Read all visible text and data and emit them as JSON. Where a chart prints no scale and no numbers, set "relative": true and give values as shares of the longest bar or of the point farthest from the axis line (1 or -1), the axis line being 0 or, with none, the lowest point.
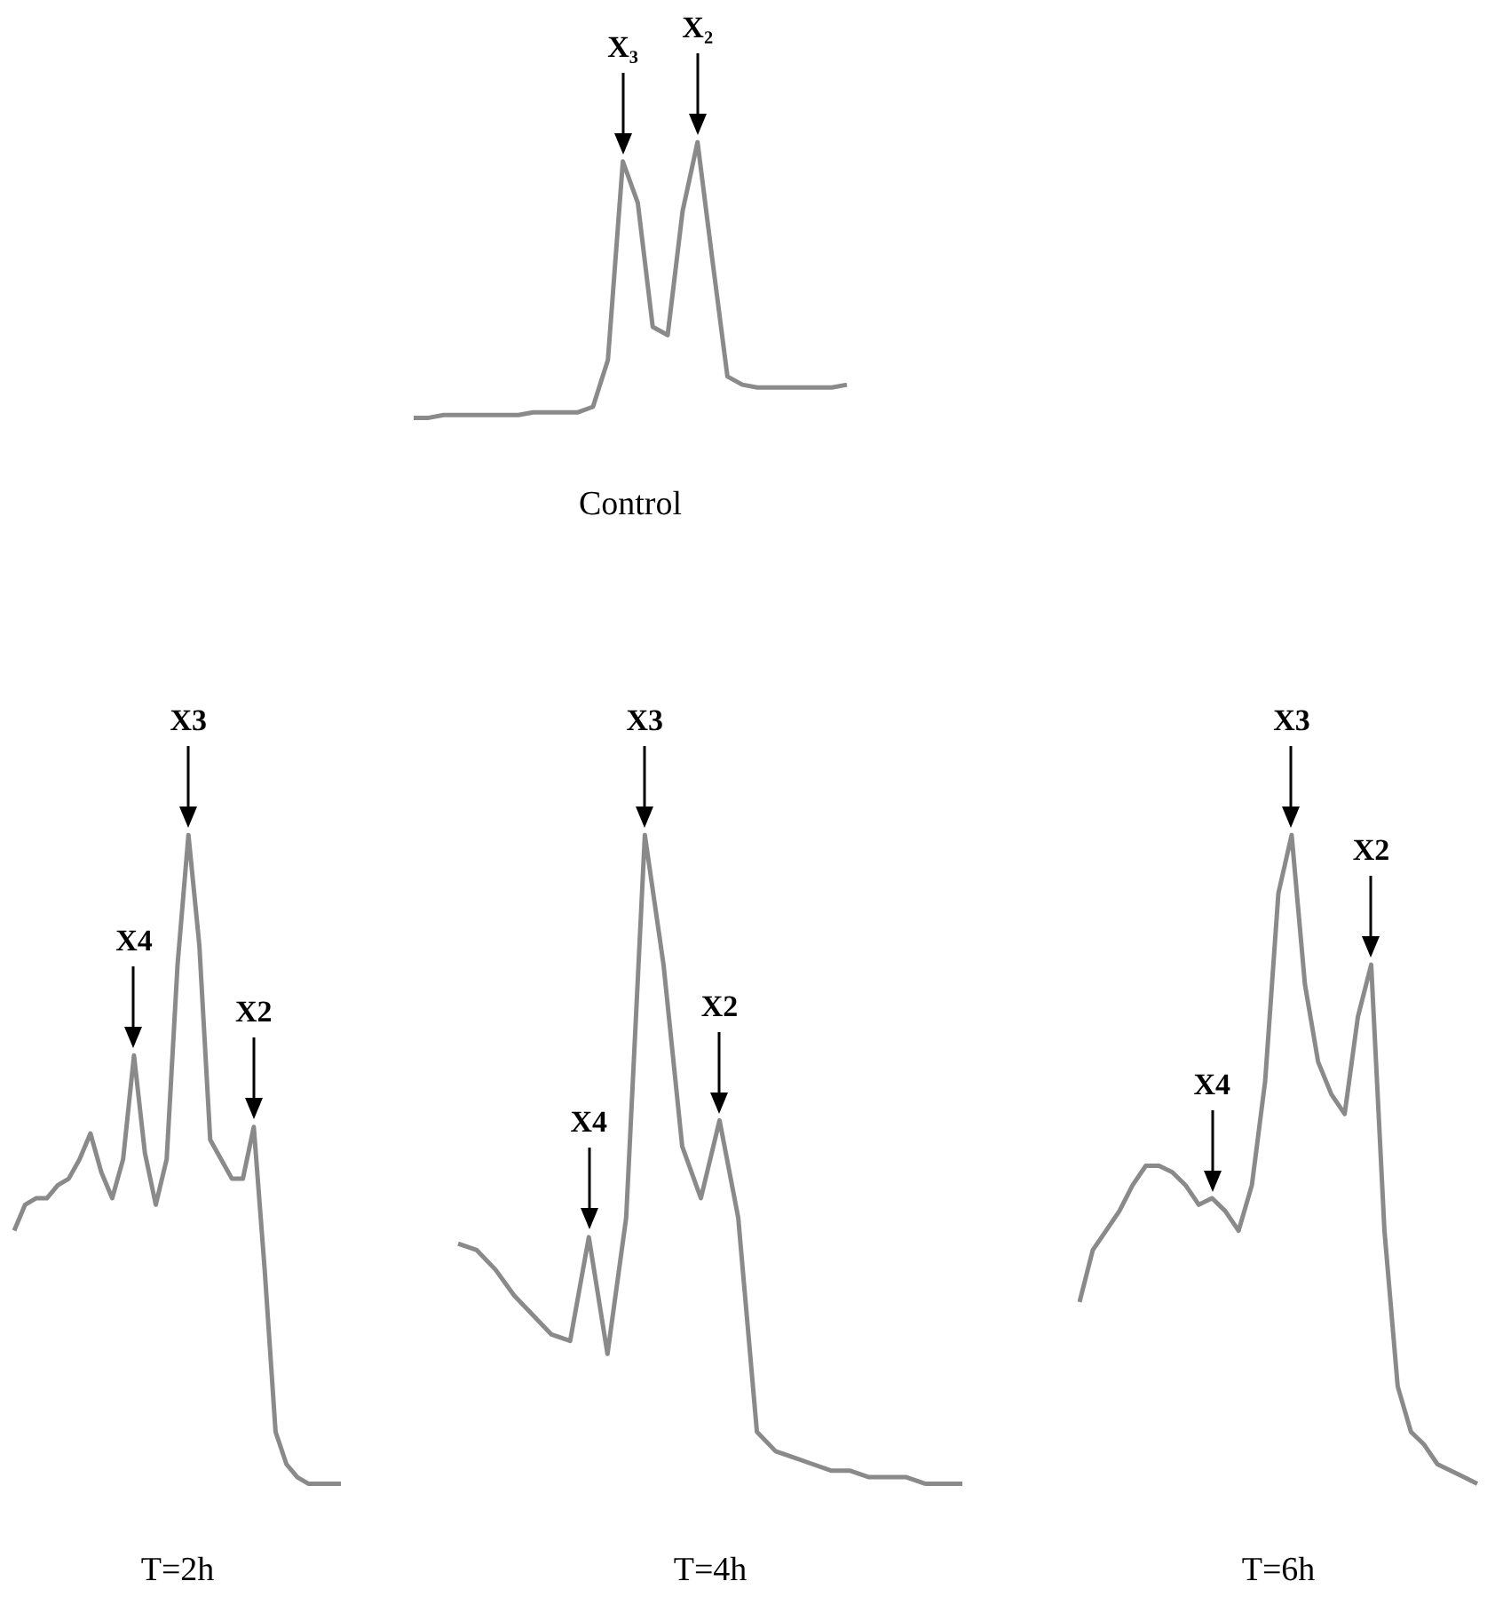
{
  "chart_data": [
    {
      "type": "line",
      "xlabel": "Control",
      "relative": true,
      "tick_labels": false,
      "categories": [
        null,
        null,
        null,
        null,
        null,
        null,
        null,
        null,
        null,
        null,
        null,
        null,
        null,
        null,
        null,
        null,
        null,
        null,
        null,
        null,
        null,
        null,
        null,
        null,
        null,
        null,
        null,
        null,
        null,
        null
      ],
      "series": [
        {
          "color": "#8a8a8a",
          "values": [
            0,
            0,
            0.01,
            0.01,
            0.01,
            0.01,
            0.01,
            0.01,
            0.02,
            0.02,
            0.02,
            0.02,
            0.04,
            0.21,
            0.93,
            0.78,
            0.33,
            0.3,
            0.75,
            1,
            0.57,
            0.15,
            0.12,
            0.11,
            0.11,
            0.11,
            0.11,
            0.11,
            0.11,
            0.12
          ]
        }
      ],
      "annotations": [
        "X₃",
        "X₂"
      ]
    },
    {
      "type": "line",
      "xlabel": "T=2h",
      "relative": true,
      "tick_labels": false,
      "categories": [
        null,
        null,
        null,
        null,
        null,
        null,
        null,
        null,
        null,
        null,
        null,
        null,
        null,
        null,
        null,
        null,
        null,
        null,
        null,
        null,
        null,
        null,
        null,
        null,
        null,
        null,
        null,
        null,
        null,
        null,
        null
      ],
      "series": [
        {
          "color": "#8a8a8a",
          "values": [
            0.39,
            0.43,
            0.44,
            0.44,
            0.46,
            0.47,
            0.5,
            0.54,
            0.48,
            0.44,
            0.5,
            0.66,
            0.51,
            0.43,
            0.5,
            0.8,
            1,
            0.83,
            0.53,
            0.5,
            0.47,
            0.47,
            0.55,
            0.33,
            0.08,
            0.03,
            0.01,
            0,
            0,
            0,
            0
          ]
        }
      ],
      "annotations": [
        "X4",
        "X3",
        "X2"
      ]
    },
    {
      "type": "line",
      "xlabel": "T=4h",
      "relative": true,
      "tick_labels": false,
      "categories": [
        null,
        null,
        null,
        null,
        null,
        null,
        null,
        null,
        null,
        null,
        null,
        null,
        null,
        null,
        null,
        null,
        null,
        null,
        null,
        null,
        null,
        null,
        null,
        null,
        null,
        null,
        null,
        null
      ],
      "series": [
        {
          "color": "#8a8a8a",
          "values": [
            0.37,
            0.36,
            0.33,
            0.29,
            0.26,
            0.23,
            0.22,
            0.38,
            0.2,
            0.41,
            1,
            0.8,
            0.52,
            0.44,
            0.56,
            0.41,
            0.08,
            0.05,
            0.04,
            0.03,
            0.02,
            0.02,
            0.01,
            0.01,
            0.01,
            0,
            0,
            0
          ]
        }
      ],
      "annotations": [
        "X4",
        "X3",
        "X2"
      ]
    },
    {
      "type": "line",
      "xlabel": "T=6h",
      "relative": true,
      "tick_labels": false,
      "categories": [
        null,
        null,
        null,
        null,
        null,
        null,
        null,
        null,
        null,
        null,
        null,
        null,
        null,
        null,
        null,
        null,
        null,
        null,
        null,
        null,
        null,
        null,
        null,
        null,
        null,
        null,
        null,
        null,
        null,
        null,
        null
      ],
      "series": [
        {
          "color": "#8a8a8a",
          "values": [
            0.28,
            0.36,
            0.39,
            0.42,
            0.46,
            0.49,
            0.49,
            0.48,
            0.46,
            0.43,
            0.44,
            0.42,
            0.39,
            0.46,
            0.62,
            0.91,
            1,
            0.77,
            0.65,
            0.6,
            0.57,
            0.72,
            0.8,
            0.39,
            0.15,
            0.08,
            0.06,
            0.03,
            0.02,
            0.01,
            0
          ]
        }
      ],
      "annotations": [
        "X4",
        "X3",
        "X2"
      ]
    }
  ]
}
